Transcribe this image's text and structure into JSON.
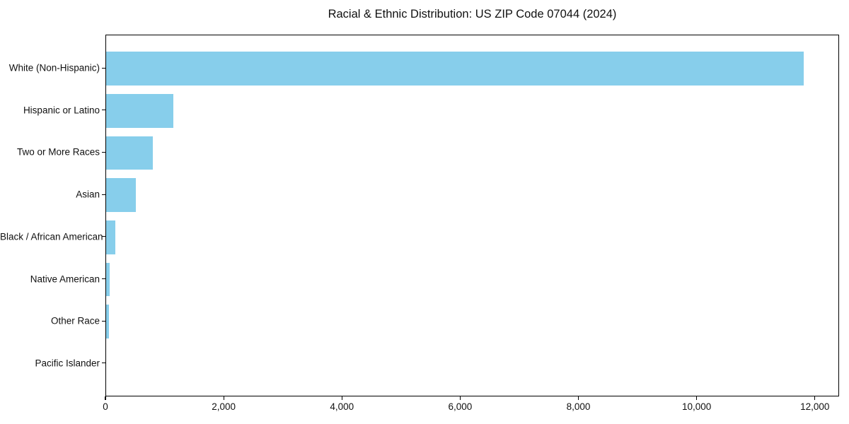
{
  "title": "Racial & Ethnic Distribution: US ZIP Code 07044 (2024)",
  "colors": {
    "bar": "#87CEEB",
    "spine": "#000000",
    "text": "#111111",
    "background": "#ffffff"
  },
  "chart_data": {
    "type": "bar",
    "orientation": "horizontal",
    "title": "Racial & Ethnic Distribution: US ZIP Code 07044 (2024)",
    "xlabel": "",
    "ylabel": "",
    "categories": [
      "White (Non-Hispanic)",
      "Hispanic or Latino",
      "Two or More Races",
      "Asian",
      "Black / African American",
      "Native American",
      "Other Race",
      "Pacific Islander"
    ],
    "values": [
      11800,
      1140,
      790,
      500,
      160,
      60,
      48,
      0
    ],
    "xlim": [
      0,
      12410
    ],
    "xticks": [
      0,
      2000,
      4000,
      6000,
      8000,
      10000,
      12000
    ],
    "xtick_labels": [
      "0",
      "2,000",
      "4,000",
      "6,000",
      "8,000",
      "10,000",
      "12,000"
    ],
    "grid": false,
    "legend": null,
    "bar_color": "#87CEEB",
    "sort": "descending"
  }
}
